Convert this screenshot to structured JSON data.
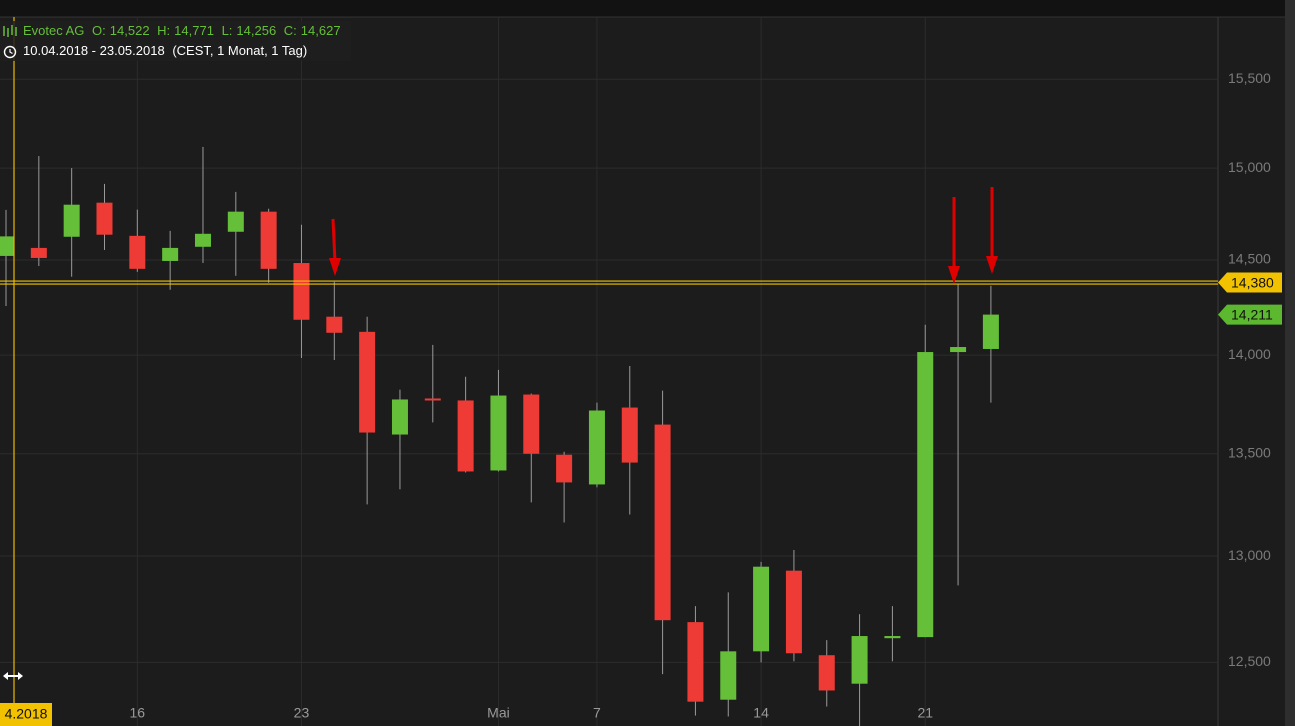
{
  "chart_data": {
    "type": "candlestick",
    "title": "Evotec AG",
    "ohlc_labels": [
      "O:",
      "H:",
      "L:",
      "C:"
    ],
    "ohlc_values": [
      "14,522",
      "14,771",
      "14,256",
      "14,627"
    ],
    "subtitle": "10.04.2018 - 23.05.2018",
    "subtitle_note": "(CEST, 1 Monat, 1 Tag)",
    "crosshair_label": "4.2018",
    "categories": [
      null,
      null,
      null,
      null,
      "16",
      null,
      null,
      null,
      null,
      "23",
      null,
      null,
      null,
      null,
      null,
      "Mai",
      null,
      null,
      "7",
      null,
      null,
      null,
      null,
      "14",
      null,
      null,
      null,
      null,
      "21",
      null,
      null
    ],
    "open": [
      14522,
      14565,
      14625,
      14810,
      14630,
      14495,
      14571,
      14652,
      14761,
      14484,
      14200,
      14121,
      13596,
      13778,
      13768,
      13417,
      13798,
      13495,
      13348,
      13732,
      13646,
      12687,
      12329,
      12551,
      12930,
      12533,
      12402,
      12612,
      12617,
      14016,
      14032
    ],
    "high": [
      14771,
      15067,
      15000,
      14913,
      14772,
      14657,
      15118,
      14869,
      14777,
      14690,
      14384,
      14200,
      13823,
      14053,
      13889,
      13924,
      13803,
      13510,
      13757,
      13944,
      13818,
      12762,
      12827,
      12972,
      13029,
      12603,
      12724,
      12762,
      14158,
      14374,
      14363
    ],
    "low": [
      14256,
      14468,
      14411,
      14554,
      14437,
      14342,
      14484,
      14416,
      14379,
      13985,
      13975,
      13250,
      13324,
      13657,
      13407,
      13412,
      13260,
      13162,
      13334,
      13201,
      12446,
      12257,
      12253,
      12500,
      12505,
      12298,
      12210,
      12505,
      12617,
      12860,
      13757
    ],
    "close": [
      14627,
      14511,
      14799,
      14636,
      14453,
      14565,
      14641,
      14761,
      14453,
      14184,
      14116,
      13606,
      13773,
      13768,
      13412,
      13793,
      13500,
      13358,
      13717,
      13456,
      12696,
      12320,
      12551,
      12949,
      12542,
      12371,
      12622,
      12622,
      14016,
      14042,
      14211
    ],
    "up_color": "#66bf39",
    "down_color": "#ee3b36",
    "log_scale": true,
    "grid": true,
    "ylim": [
      12210,
      15860
    ],
    "yticks": [
      {
        "value": 12500,
        "label": "12,500"
      },
      {
        "value": 13000,
        "label": "13,000"
      },
      {
        "value": 13500,
        "label": "13,500"
      },
      {
        "value": 14000,
        "label": "14,000"
      },
      {
        "value": 14500,
        "label": "14,500"
      },
      {
        "value": 15000,
        "label": "15,000"
      },
      {
        "value": 15500,
        "label": "15,500"
      }
    ],
    "price_lines": [
      {
        "value": 14380,
        "label": "14,380",
        "color": "#f2c200"
      },
      {
        "value": 14211,
        "label": "14,211",
        "color": "#5cb82f"
      }
    ]
  }
}
